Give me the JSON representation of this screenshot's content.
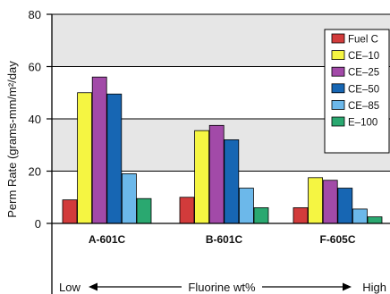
{
  "chart_data": {
    "type": "bar",
    "title": "",
    "ylabel": "Perm Rate (grams-mm/m²/day",
    "xlabel": "Fluorine wt%",
    "x_axis_low_label": "Low",
    "x_axis_high_label": "High",
    "categories": [
      "A-601C",
      "B-601C",
      "F-605C"
    ],
    "ylim": [
      0,
      80
    ],
    "yticks": [
      "0",
      "20",
      "40",
      "60",
      "80"
    ],
    "grid": "alternating horizontal bands",
    "legend_position": "top-right",
    "series": [
      {
        "name": "Fuel C",
        "color": "#d23b3b",
        "values": [
          9,
          10,
          6
        ]
      },
      {
        "name": "CE–10",
        "color": "#f5f542",
        "values": [
          50,
          35.5,
          17.5
        ]
      },
      {
        "name": "CE–25",
        "color": "#a24aa8",
        "values": [
          56,
          37.5,
          16.5
        ]
      },
      {
        "name": "CE–50",
        "color": "#1766b3",
        "values": [
          49.5,
          32,
          13.5
        ]
      },
      {
        "name": "CE–85",
        "color": "#6cb8ea",
        "values": [
          19,
          13.5,
          5.5
        ]
      },
      {
        "name": "E–100",
        "color": "#2aa870",
        "values": [
          9.5,
          6,
          2.5
        ]
      }
    ]
  }
}
